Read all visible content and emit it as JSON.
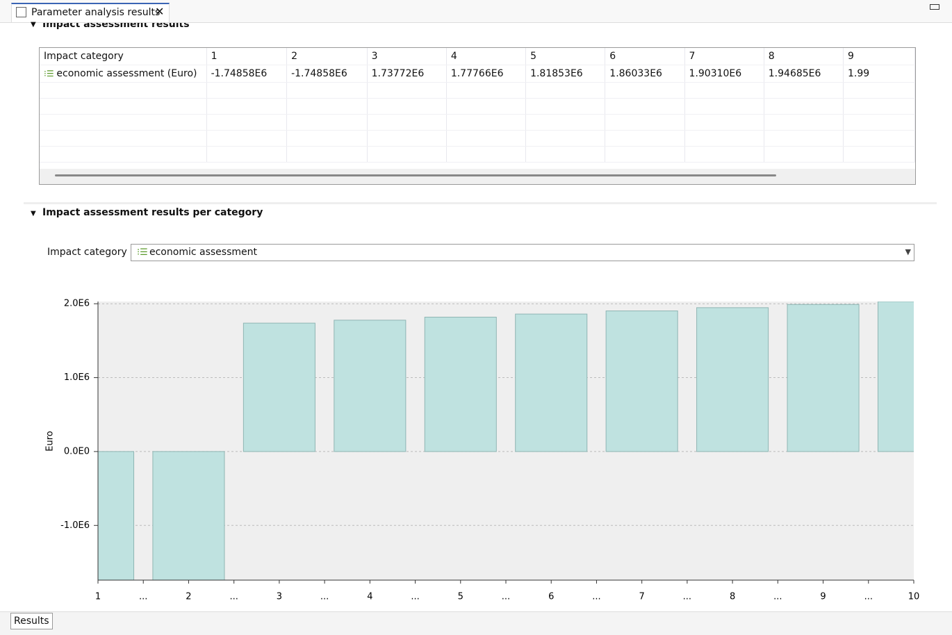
{
  "tab": {
    "title": "Parameter analysis results"
  },
  "results_section": {
    "title": "Impact assessment results",
    "table": {
      "header": [
        "Impact category",
        "1",
        "2",
        "3",
        "4",
        "5",
        "6",
        "7",
        "8",
        "9"
      ],
      "rows": [
        [
          "economic assessment (Euro)",
          "-1.74858E6",
          "-1.74858E6",
          "1.73772E6",
          "1.77766E6",
          "1.81853E6",
          "1.86033E6",
          "1.90310E6",
          "1.94685E6",
          "1.99"
        ]
      ]
    }
  },
  "category_section": {
    "title": "Impact assessment results per category",
    "selector": {
      "label": "Impact category",
      "value": "economic assessment"
    }
  },
  "chart_data": {
    "type": "bar",
    "ylabel": "Euro",
    "x": [
      1,
      2,
      3,
      4,
      5,
      6,
      7,
      8,
      9,
      10
    ],
    "values": [
      -1748580,
      -1748580,
      1737720,
      1777660,
      1818530,
      1860330,
      1903100,
      1946850,
      1990000,
      2030000
    ],
    "color": "#bfe2e0",
    "xlim": [
      1,
      10
    ],
    "xticks": [
      1,
      {
        "value": 1.5,
        "label": "..."
      },
      2,
      {
        "value": 2.5,
        "label": "..."
      },
      3,
      {
        "value": 3.5,
        "label": "..."
      },
      4,
      {
        "value": 4.5,
        "label": "..."
      },
      5,
      {
        "value": 5.5,
        "label": "..."
      },
      6,
      {
        "value": 6.5,
        "label": "..."
      },
      7,
      {
        "value": 7.5,
        "label": "..."
      },
      8,
      {
        "value": 8.5,
        "label": "..."
      },
      9,
      {
        "value": 9.5,
        "label": "..."
      },
      10
    ],
    "ylim": [
      -1740000,
      2030000
    ],
    "yticks": [
      {
        "value": -1000000,
        "label": "-1.0E6"
      },
      {
        "value": 0,
        "label": "0.0E0"
      },
      {
        "value": 1000000,
        "label": "1.0E6"
      },
      {
        "value": 2000000,
        "label": "2.0E6"
      }
    ],
    "grid": true
  },
  "bottom_tab": "Results"
}
